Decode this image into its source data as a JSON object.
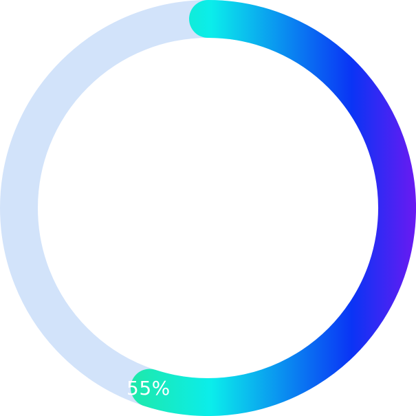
{
  "progress": {
    "value": 0.55,
    "label": "55%"
  },
  "colors": {
    "track": "#D2E3FA",
    "gradient": [
      "#20E8A4",
      "#0BEDEB",
      "#0A34F5",
      "#6A1AF2"
    ]
  }
}
